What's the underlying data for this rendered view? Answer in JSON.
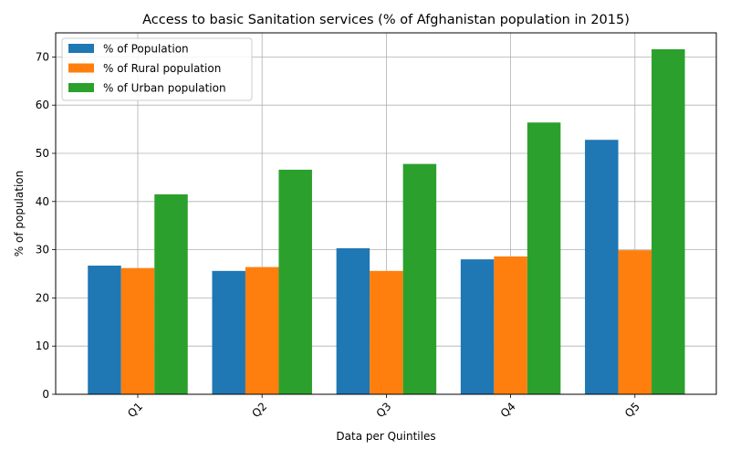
{
  "chart_data": {
    "type": "bar",
    "title": "Access to basic Sanitation services (% of Afghanistan population in 2015)",
    "xlabel": "Data per Quintiles",
    "ylabel": "% of population",
    "categories": [
      "Q1",
      "Q2",
      "Q3",
      "Q4",
      "Q5"
    ],
    "series": [
      {
        "name": "% of Population",
        "color": "#1f77b4",
        "values": [
          26.7,
          25.6,
          30.3,
          28.0,
          52.8
        ]
      },
      {
        "name": "% of Rural population",
        "color": "#ff7f0e",
        "values": [
          26.2,
          26.4,
          25.6,
          28.6,
          29.9
        ]
      },
      {
        "name": "% of Urban population",
        "color": "#2ca02c",
        "values": [
          41.5,
          46.6,
          47.8,
          56.4,
          71.6
        ]
      }
    ],
    "ylim": [
      0,
      75
    ],
    "yticks": [
      0,
      10,
      20,
      30,
      40,
      50,
      60,
      70
    ],
    "grid": true,
    "legend_position": "top-left"
  }
}
